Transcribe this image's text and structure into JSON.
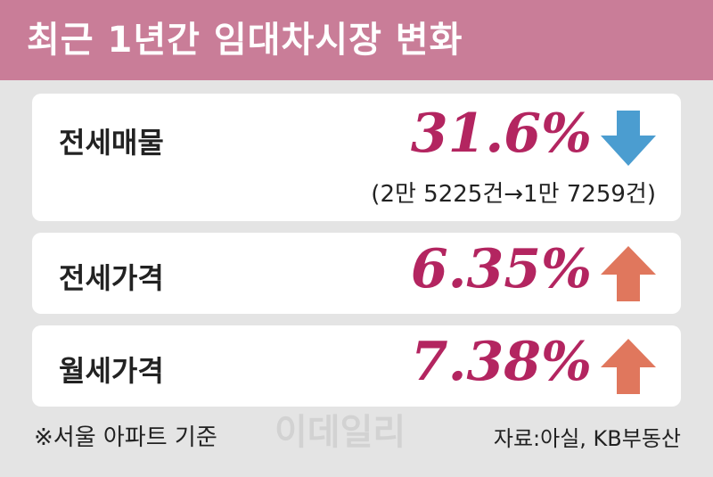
{
  "header": {
    "title": "최근 1년간 임대차시장 변화"
  },
  "rows": [
    {
      "label": "전세매물",
      "value": "31.6%",
      "trend": "down",
      "note": "(2만 5225건→1만 7259건)"
    },
    {
      "label": "전세가격",
      "value": "6.35%",
      "trend": "up"
    },
    {
      "label": "월세가격",
      "value": "7.38%",
      "trend": "up"
    }
  ],
  "footer": {
    "note": "※서울 아파트 기준",
    "source": "자료:아실, KB부동산",
    "watermark": "이데일리"
  }
}
